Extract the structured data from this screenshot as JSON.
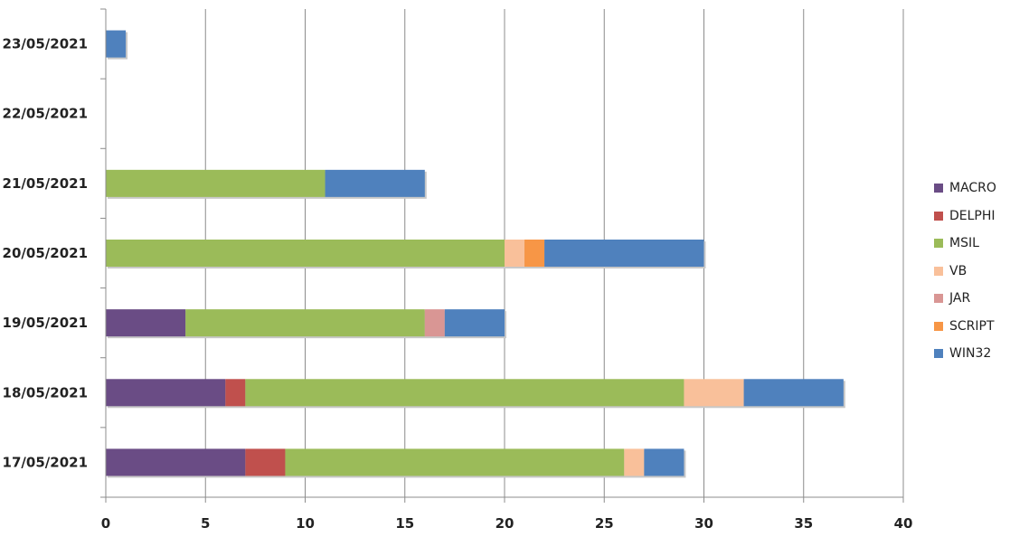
{
  "chart_data": {
    "type": "bar",
    "orientation": "horizontal",
    "stacked": true,
    "categories": [
      "17/05/2021",
      "18/05/2021",
      "19/05/2021",
      "20/05/2021",
      "21/05/2021",
      "22/05/2021",
      "23/05/2021"
    ],
    "series": [
      {
        "name": "MACRO",
        "color": "#6a4c85",
        "values": [
          7,
          6,
          4,
          0,
          0,
          0,
          0
        ]
      },
      {
        "name": "DELPHI",
        "color": "#c0504d",
        "values": [
          2,
          1,
          0,
          0,
          0,
          0,
          0
        ]
      },
      {
        "name": "MSIL",
        "color": "#9bbb59",
        "values": [
          17,
          22,
          12,
          20,
          11,
          0,
          0
        ]
      },
      {
        "name": "VB",
        "color": "#f9c09a",
        "values": [
          1,
          3,
          0,
          1,
          0,
          0,
          0
        ]
      },
      {
        "name": "JAR",
        "color": "#d99694",
        "values": [
          0,
          0,
          1,
          0,
          0,
          0,
          0
        ]
      },
      {
        "name": "SCRIPT",
        "color": "#f79646",
        "values": [
          0,
          0,
          0,
          1,
          0,
          0,
          0
        ]
      },
      {
        "name": "WIN32",
        "color": "#4f81bd",
        "values": [
          2,
          5,
          3,
          8,
          5,
          0,
          1
        ]
      }
    ],
    "xlim": [
      0,
      40
    ],
    "x_ticks": [
      "0",
      "5",
      "10",
      "15",
      "20",
      "25",
      "30",
      "35",
      "40"
    ],
    "grid": true,
    "legend_position": "right"
  }
}
